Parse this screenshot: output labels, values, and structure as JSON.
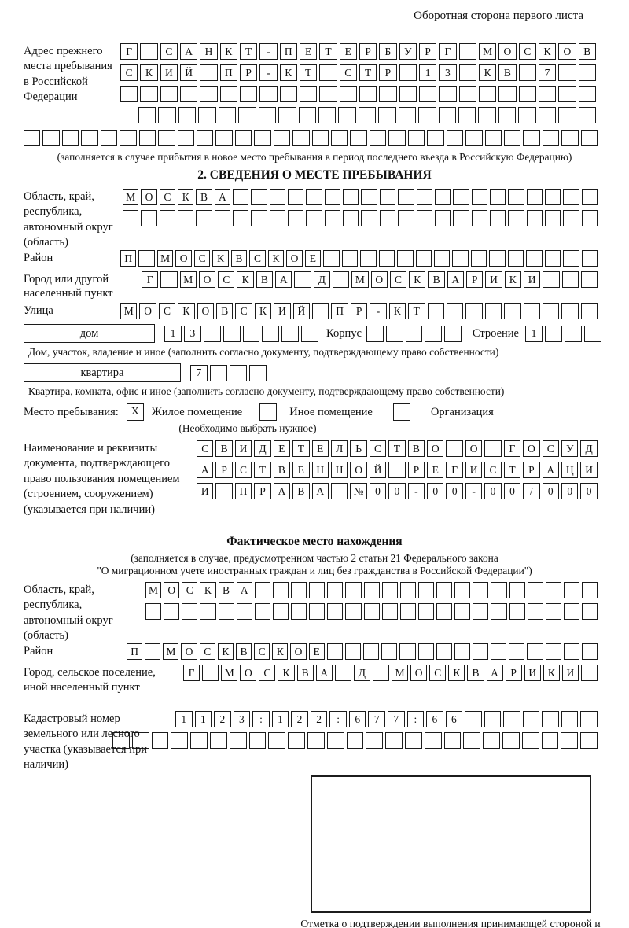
{
  "page": {
    "header_note": "Оборотная сторона первого листа"
  },
  "prev_address": {
    "label": "Адрес прежнего места пребывания в Российской Федерации",
    "rows": [
      {
        "cells": "Г САНКТ-ПЕТЕРБУРГ МОСКОВ",
        "count": 24
      },
      {
        "cells": "СКИЙ ПР-КТ СТР 13 КВ 7",
        "count": 24
      },
      {
        "cells": "",
        "count": 24
      },
      {
        "cells": "",
        "count": 23
      },
      {
        "cells": "",
        "count": 30
      }
    ],
    "note": "(заполняется в случае прибытия в новое место пребывания в период последнего въезда в Российскую Федерацию)"
  },
  "section2": {
    "title": "2. СВЕДЕНИЯ О МЕСТЕ ПРЕБЫВАНИЯ",
    "region": {
      "label": "Область, край, республика, автономный округ (область)",
      "rows": [
        {
          "cells": "МОСКВА",
          "count": 26
        },
        {
          "cells": "",
          "count": 26
        }
      ]
    },
    "district": {
      "label": "Район",
      "row": {
        "cells": "П МОСКВСКОЕ",
        "count": 26
      }
    },
    "city": {
      "label": "Город или другой населенный пункт",
      "row": {
        "cells": "Г МОСКВА Д МОСКВАРИКИ",
        "count": 24
      }
    },
    "street": {
      "label": "Улица",
      "row": {
        "cells": "МОСКОВСКИЙ ПР-КТ",
        "count": 25
      }
    },
    "house": {
      "box_label": "дом",
      "cells": {
        "cells": "13",
        "count": 8
      },
      "korpus_label": "Корпус",
      "korpus_cells": {
        "cells": "",
        "count": 5
      },
      "stroenie_label": "Строение",
      "stroenie_cells": {
        "cells": "1",
        "count": 4
      }
    },
    "house_note": "Дом, участок, владение и иное (заполнить согласно документу, подтверждающему право собственности)",
    "apartment": {
      "box_label": "квартира",
      "cells": {
        "cells": "7",
        "count": 4
      }
    },
    "apartment_note": "Квартира, комната, офис и иное (заполнить согласно документу, подтверждающему право собственности)",
    "stay": {
      "label": "Место пребывания:",
      "options": [
        {
          "label": "Жилое помещение",
          "mark": "X"
        },
        {
          "label": "Иное помещение",
          "mark": ""
        },
        {
          "label": "Организация",
          "mark": ""
        }
      ],
      "note": "(Необходимо выбрать нужное)"
    },
    "document": {
      "label": "Наименование и реквизиты документа, подтверждающего право пользования помещением (строением, сооружением) (указывается при наличии)",
      "rows": [
        {
          "cells": "СВИДЕТЕЛЬСТВО О ГОСУД",
          "count": 21
        },
        {
          "cells": "АРСТВЕННОЙ РЕГИСТРАЦИ",
          "count": 21
        },
        {
          "cells": "И ПРАВА №00-00-00/000",
          "count": 21
        }
      ]
    }
  },
  "actual_location": {
    "title": "Фактическое место нахождения",
    "note_line1": "(заполняется в случае, предусмотренном частью 2 статьи 21 Федерального закона",
    "note_line2": "\"О миграционном учете иностранных граждан и лиц без гражданства в Российской Федерации\")",
    "region": {
      "label": "Область, край, республика, автономный округ (область)",
      "rows": [
        {
          "cells": "МОСКВА",
          "count": 25
        },
        {
          "cells": "",
          "count": 25
        }
      ]
    },
    "district": {
      "label": "Район",
      "row": {
        "cells": "П МОСКВСКОЕ",
        "count": 26
      }
    },
    "city": {
      "label": "Город, сельское поселение, иной населенный пункт",
      "row": {
        "cells": "Г МОСКВА Д МОСКВАРИКИ",
        "count": 22
      }
    },
    "cadastral": {
      "label": "Кадастровый номер земельного или лесного участка (указывается при наличии)",
      "rows": [
        {
          "cells": "1123:122:677:66",
          "count": 22
        },
        {
          "cells": "",
          "count": 25
        }
      ]
    },
    "stamp_caption": "Отметка о подтверждении выполнения принимающей стороной и иностранным гражданином или лицом без гражданства действий, необходимых для его постановки на учет по месту пребывания"
  }
}
